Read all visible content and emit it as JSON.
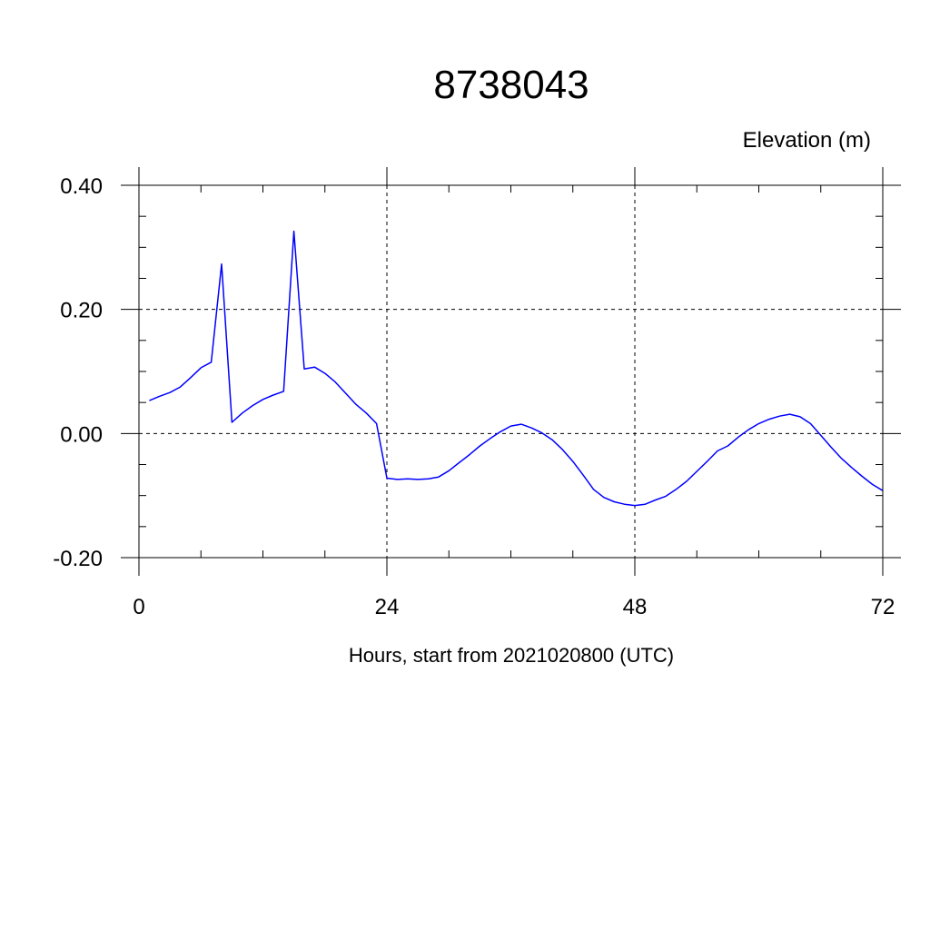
{
  "chart_data": {
    "type": "line",
    "title": "8738043",
    "ylabel_top": "Elevation (m)",
    "xlabel": "Hours, start from 2021020800 (UTC)",
    "xlim": [
      0,
      72
    ],
    "ylim": [
      -0.2,
      0.4
    ],
    "x_ticks": [
      0,
      24,
      48,
      72
    ],
    "x_tick_labels": [
      "0",
      "24",
      "48",
      "72"
    ],
    "y_ticks": [
      -0.2,
      0,
      0.2,
      0.4
    ],
    "y_tick_labels": [
      "-0.20",
      "0.00",
      "0.20",
      "0.40"
    ],
    "grid": true,
    "line_color": "#0000ff",
    "series": [
      {
        "x": [
          1,
          2,
          3,
          4,
          5,
          6,
          7,
          8,
          9,
          10,
          11,
          12,
          13,
          14,
          15,
          16,
          17,
          18,
          19,
          20,
          21,
          22,
          23,
          24,
          25,
          26,
          27,
          28,
          29,
          30,
          31,
          32,
          33,
          34,
          35,
          36,
          37,
          38,
          39,
          40,
          41,
          42,
          43,
          44,
          45,
          46,
          47,
          48,
          49,
          50,
          51,
          52,
          53,
          54,
          55,
          56,
          57,
          58,
          59,
          60,
          61,
          62,
          63,
          64,
          65,
          66,
          67,
          68,
          69,
          70,
          71,
          72
        ],
        "y": [
          0.053,
          0.06,
          0.066,
          0.075,
          0.09,
          0.106,
          0.115,
          0.273,
          0.018,
          0.033,
          0.045,
          0.055,
          0.062,
          0.068,
          0.326,
          0.104,
          0.107,
          0.097,
          0.083,
          0.065,
          0.047,
          0.033,
          0.016,
          -0.072,
          -0.074,
          -0.073,
          -0.074,
          -0.073,
          -0.07,
          -0.06,
          -0.047,
          -0.034,
          -0.02,
          -0.008,
          0.003,
          0.012,
          0.015,
          0.009,
          0.001,
          -0.01,
          -0.026,
          -0.045,
          -0.067,
          -0.09,
          -0.103,
          -0.11,
          -0.114,
          -0.116,
          -0.114,
          -0.107,
          -0.101,
          -0.09,
          -0.077,
          -0.061,
          -0.045,
          -0.028,
          -0.02,
          -0.006,
          0.006,
          0.016,
          0.023,
          0.028,
          0.031,
          0.027,
          0.016,
          -0.003,
          -0.022,
          -0.04,
          -0.055,
          -0.069,
          -0.082,
          -0.092
        ]
      }
    ]
  }
}
